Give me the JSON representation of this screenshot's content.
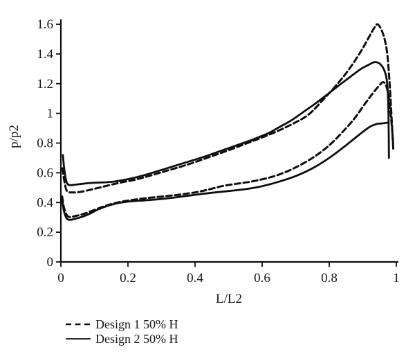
{
  "figure": {
    "background": "#ffffff",
    "ink_color": "#0e0e0e",
    "text_color": "#161616"
  },
  "chart_data": {
    "type": "line",
    "title": "",
    "xlabel": "L/L2",
    "ylabel": "p/p2",
    "xlim": [
      0,
      1
    ],
    "ylim": [
      0,
      1.6
    ],
    "xticks": [
      0,
      0.2,
      0.4,
      0.6,
      0.8,
      1
    ],
    "xtick_labels": [
      "0",
      "0.2",
      "0.4",
      "0.6",
      "0.8",
      "1"
    ],
    "yticks": [
      0,
      0.2,
      0.4,
      0.6,
      0.8,
      1,
      1.2,
      1.4,
      1.6
    ],
    "ytick_labels": [
      "0",
      "0.2",
      "0.4",
      "0.6",
      "0.8",
      "1",
      "1.2",
      "1.4",
      "1.6"
    ],
    "grid": false,
    "legend_position": "bottom-left",
    "series": [
      {
        "name": "Design 1 50% H",
        "style": "dashed",
        "branches": {
          "upper": [
            [
              0.005,
              0.63
            ],
            [
              0.01,
              0.55
            ],
            [
              0.018,
              0.478
            ],
            [
              0.035,
              0.468
            ],
            [
              0.06,
              0.472
            ],
            [
              0.09,
              0.487
            ],
            [
              0.12,
              0.503
            ],
            [
              0.15,
              0.52
            ],
            [
              0.18,
              0.535
            ],
            [
              0.22,
              0.553
            ],
            [
              0.26,
              0.577
            ],
            [
              0.31,
              0.61
            ],
            [
              0.36,
              0.643
            ],
            [
              0.4,
              0.672
            ],
            [
              0.45,
              0.712
            ],
            [
              0.5,
              0.752
            ],
            [
              0.55,
              0.795
            ],
            [
              0.6,
              0.838
            ],
            [
              0.65,
              0.885
            ],
            [
              0.7,
              0.94
            ],
            [
              0.74,
              0.995
            ],
            [
              0.785,
              1.1
            ],
            [
              0.825,
              1.2
            ],
            [
              0.86,
              1.3
            ],
            [
              0.895,
              1.42
            ],
            [
              0.92,
              1.52
            ],
            [
              0.935,
              1.578
            ],
            [
              0.944,
              1.6
            ],
            [
              0.955,
              1.565
            ],
            [
              0.965,
              1.5
            ],
            [
              0.973,
              1.4
            ],
            [
              0.979,
              1.24
            ],
            [
              0.984,
              1.05
            ],
            [
              0.988,
              0.88
            ],
            [
              0.991,
              0.76
            ]
          ],
          "lower": [
            [
              0.004,
              0.44
            ],
            [
              0.01,
              0.36
            ],
            [
              0.022,
              0.305
            ],
            [
              0.045,
              0.31
            ],
            [
              0.07,
              0.325
            ],
            [
              0.1,
              0.35
            ],
            [
              0.13,
              0.375
            ],
            [
              0.16,
              0.395
            ],
            [
              0.2,
              0.413
            ],
            [
              0.25,
              0.428
            ],
            [
              0.3,
              0.44
            ],
            [
              0.35,
              0.452
            ],
            [
              0.4,
              0.468
            ],
            [
              0.44,
              0.487
            ],
            [
              0.48,
              0.51
            ],
            [
              0.52,
              0.525
            ],
            [
              0.56,
              0.538
            ],
            [
              0.6,
              0.556
            ],
            [
              0.64,
              0.58
            ],
            [
              0.68,
              0.615
            ],
            [
              0.72,
              0.66
            ],
            [
              0.76,
              0.715
            ],
            [
              0.8,
              0.785
            ],
            [
              0.84,
              0.875
            ],
            [
              0.875,
              0.965
            ],
            [
              0.905,
              1.06
            ],
            [
              0.93,
              1.135
            ],
            [
              0.95,
              1.19
            ],
            [
              0.962,
              1.21
            ],
            [
              0.972,
              1.17
            ],
            [
              0.98,
              1.06
            ],
            [
              0.986,
              0.93
            ],
            [
              0.991,
              0.78
            ]
          ]
        }
      },
      {
        "name": "Design 2 50% H",
        "style": "solid",
        "branches": {
          "upper": [
            [
              0.006,
              0.72
            ],
            [
              0.01,
              0.63
            ],
            [
              0.016,
              0.545
            ],
            [
              0.025,
              0.518
            ],
            [
              0.05,
              0.522
            ],
            [
              0.08,
              0.53
            ],
            [
              0.11,
              0.534
            ],
            [
              0.14,
              0.537
            ],
            [
              0.17,
              0.545
            ],
            [
              0.21,
              0.562
            ],
            [
              0.25,
              0.585
            ],
            [
              0.29,
              0.612
            ],
            [
              0.33,
              0.64
            ],
            [
              0.37,
              0.668
            ],
            [
              0.42,
              0.703
            ],
            [
              0.47,
              0.742
            ],
            [
              0.52,
              0.782
            ],
            [
              0.57,
              0.822
            ],
            [
              0.62,
              0.868
            ],
            [
              0.645,
              0.9
            ],
            [
              0.685,
              0.95
            ],
            [
              0.72,
              1.005
            ],
            [
              0.755,
              1.06
            ],
            [
              0.79,
              1.12
            ],
            [
              0.83,
              1.19
            ],
            [
              0.865,
              1.25
            ],
            [
              0.895,
              1.3
            ],
            [
              0.92,
              1.33
            ],
            [
              0.935,
              1.345
            ],
            [
              0.95,
              1.335
            ],
            [
              0.962,
              1.3
            ],
            [
              0.97,
              1.245
            ],
            [
              0.9745,
              1.15
            ],
            [
              0.977,
              0.95
            ],
            [
              0.978,
              0.7
            ]
          ],
          "lower": [
            [
              0.004,
              0.42
            ],
            [
              0.01,
              0.335
            ],
            [
              0.022,
              0.285
            ],
            [
              0.05,
              0.295
            ],
            [
              0.08,
              0.318
            ],
            [
              0.11,
              0.352
            ],
            [
              0.14,
              0.378
            ],
            [
              0.17,
              0.396
            ],
            [
              0.21,
              0.408
            ],
            [
              0.26,
              0.416
            ],
            [
              0.31,
              0.426
            ],
            [
              0.36,
              0.44
            ],
            [
              0.41,
              0.455
            ],
            [
              0.46,
              0.468
            ],
            [
              0.5,
              0.477
            ],
            [
              0.55,
              0.49
            ],
            [
              0.6,
              0.51
            ],
            [
              0.65,
              0.54
            ],
            [
              0.7,
              0.578
            ],
            [
              0.75,
              0.63
            ],
            [
              0.8,
              0.7
            ],
            [
              0.85,
              0.785
            ],
            [
              0.89,
              0.858
            ],
            [
              0.92,
              0.908
            ],
            [
              0.94,
              0.928
            ],
            [
              0.955,
              0.932
            ],
            [
              0.972,
              0.937
            ],
            [
              0.9755,
              0.937
            ]
          ]
        }
      }
    ]
  }
}
